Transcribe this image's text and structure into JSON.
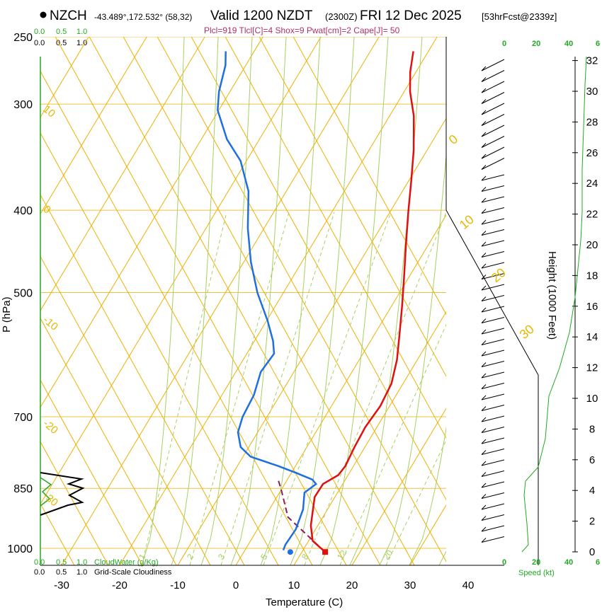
{
  "header": {
    "station": "NZCH",
    "coords": "-43.489°,172.532° (58,32)",
    "valid": "Valid 1200 NZDT",
    "utc": "(2300Z)",
    "date": "FRI 12 Dec 2025",
    "forecast": "[53hrFcst@2339z]",
    "params": "Plcl=919 Tlcl[C]=4 Shox=9 Pwat[cm]=2 Cape[J]= 50"
  },
  "scales": {
    "cloudwater_top": [
      "0.0",
      "0.5",
      "1.0"
    ],
    "cloudiness_top": [
      "0.0",
      "0.5",
      "1.0"
    ],
    "cloudwater_bottom": [
      "0.0",
      "0.5",
      "1.0"
    ],
    "cloudiness_bottom": [
      "0.0",
      "0.5",
      "1.0"
    ],
    "cloudwater_label": "CloudWater (g/Kg)",
    "cloudiness_label": "Grid-Scale Cloudiness",
    "speed_ticks_top": [
      "0",
      "20",
      "40",
      "6"
    ],
    "speed_ticks_bottom": [
      "0",
      "20",
      "40",
      "6"
    ],
    "speed_label": "Speed (kt)"
  },
  "chart_data": {
    "type": "skewt",
    "title": "NZCH Valid 1200 NZDT FRI 12 Dec 2025",
    "xlabel": "Temperature (C)",
    "ylabel": "P (hPa)",
    "y2label": "Height (1000 Feet)",
    "x_ticks": [
      -30,
      -20,
      -10,
      0,
      10,
      20,
      30,
      40
    ],
    "xlim": [
      -35,
      45
    ],
    "p_ticks": [
      250,
      300,
      400,
      500,
      700,
      850,
      1000
    ],
    "plim": [
      1050,
      250
    ],
    "height_ticks": [
      0,
      2,
      4,
      6,
      8,
      10,
      12,
      14,
      16,
      18,
      20,
      22,
      24,
      26,
      28,
      30,
      32
    ],
    "isotherm_labels": [
      {
        "value": "10",
        "p": 305
      },
      {
        "value": "0",
        "p": 400
      },
      {
        "value": "-10",
        "p": 540
      },
      {
        "value": "-20",
        "p": 715
      },
      {
        "value": "-30",
        "p": 870
      }
    ],
    "isotherm_labels_right": [
      "0",
      "10",
      "20",
      "30"
    ],
    "mixing_ratio_labels": [
      "1",
      "2",
      "3",
      "5",
      "8",
      "12",
      "20"
    ],
    "temperature": [
      {
        "p": 1010,
        "t": 14
      },
      {
        "p": 980,
        "t": 10.7
      },
      {
        "p": 940,
        "t": 8.8
      },
      {
        "p": 900,
        "t": 7.5
      },
      {
        "p": 870,
        "t": 6.5
      },
      {
        "p": 840,
        "t": 6.6
      },
      {
        "p": 820,
        "t": 8.3
      },
      {
        "p": 800,
        "t": 8.6
      },
      {
        "p": 760,
        "t": 8.2
      },
      {
        "p": 720,
        "t": 8.0
      },
      {
        "p": 680,
        "t": 8.4
      },
      {
        "p": 640,
        "t": 8.0
      },
      {
        "p": 600,
        "t": 6.5
      },
      {
        "p": 560,
        "t": 4.3
      },
      {
        "p": 520,
        "t": 1.9
      },
      {
        "p": 480,
        "t": -0.8
      },
      {
        "p": 440,
        "t": -3.8
      },
      {
        "p": 400,
        "t": -7.0
      },
      {
        "p": 370,
        "t": -9.5
      },
      {
        "p": 340,
        "t": -12.3
      },
      {
        "p": 310,
        "t": -15.8
      },
      {
        "p": 290,
        "t": -19.0
      },
      {
        "p": 275,
        "t": -21.0
      },
      {
        "p": 260,
        "t": -22.6
      }
    ],
    "dewpoint": [
      {
        "p": 1005,
        "t": 6.6
      },
      {
        "p": 990,
        "t": 6.4
      },
      {
        "p": 950,
        "t": 6.6
      },
      {
        "p": 900,
        "t": 5.8
      },
      {
        "p": 860,
        "t": 4.3
      },
      {
        "p": 840,
        "t": 5.4
      },
      {
        "p": 830,
        "t": 4.3
      },
      {
        "p": 815,
        "t": 0.8
      },
      {
        "p": 800,
        "t": -3.0
      },
      {
        "p": 780,
        "t": -8.7
      },
      {
        "p": 760,
        "t": -11.4
      },
      {
        "p": 730,
        "t": -13.4
      },
      {
        "p": 700,
        "t": -14.2
      },
      {
        "p": 660,
        "t": -14.5
      },
      {
        "p": 620,
        "t": -15.7
      },
      {
        "p": 590,
        "t": -15.3
      },
      {
        "p": 570,
        "t": -16.8
      },
      {
        "p": 540,
        "t": -19.8
      },
      {
        "p": 500,
        "t": -24.5
      },
      {
        "p": 460,
        "t": -28.8
      },
      {
        "p": 420,
        "t": -32.8
      },
      {
        "p": 380,
        "t": -36.5
      },
      {
        "p": 350,
        "t": -41.0
      },
      {
        "p": 330,
        "t": -45.6
      },
      {
        "p": 305,
        "t": -50.2
      },
      {
        "p": 290,
        "t": -51.9
      },
      {
        "p": 270,
        "t": -53.5
      },
      {
        "p": 260,
        "t": -54.9
      }
    ],
    "parcel": [
      {
        "p": 1010,
        "t": 14
      },
      {
        "p": 919,
        "t": 4
      },
      {
        "p": 850,
        "t": -0.2
      },
      {
        "p": 830,
        "t": -1.6
      }
    ],
    "surface_t": 14,
    "surface_td": 8,
    "surface_p": 1010
  }
}
